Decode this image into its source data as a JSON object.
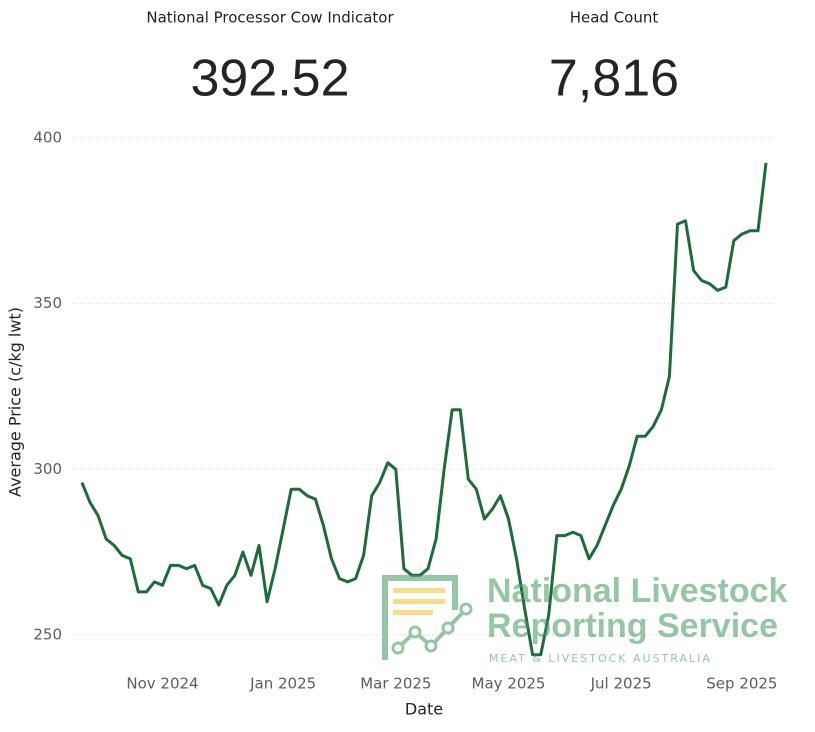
{
  "kpis": [
    {
      "label": "National Processor Cow Indicator",
      "value": "392.52"
    },
    {
      "label": "Head Count",
      "value": "7,816"
    }
  ],
  "logo": {
    "line1": "National Livestock",
    "line2": "Reporting Service",
    "tagline": "MEAT & LIVESTOCK AUSTRALIA"
  },
  "chart_data": {
    "type": "line",
    "y_label": "Average Price (c/kg lwt)",
    "x_label": "Date",
    "categories": [
      null,
      null,
      null,
      null,
      null,
      null,
      null,
      null,
      null,
      null,
      "Nov 2024",
      null,
      null,
      null,
      null,
      null,
      null,
      null,
      null,
      null,
      null,
      null,
      null,
      null,
      null,
      "Jan 2025",
      null,
      null,
      null,
      null,
      null,
      null,
      null,
      null,
      null,
      null,
      null,
      null,
      null,
      "Mar 2025",
      null,
      null,
      null,
      null,
      null,
      null,
      null,
      null,
      null,
      null,
      null,
      null,
      null,
      "May 2025",
      null,
      null,
      null,
      null,
      null,
      null,
      null,
      null,
      null,
      null,
      null,
      null,
      null,
      "Jul 2025",
      null,
      null,
      null,
      null,
      null,
      null,
      null,
      null,
      null,
      null,
      null,
      null,
      null,
      null,
      "Sep 2025",
      null,
      null,
      null
    ],
    "values": [
      296,
      290,
      286,
      279,
      277,
      274,
      273,
      263,
      263,
      266,
      265,
      271,
      271,
      270,
      271,
      265,
      264,
      259,
      265,
      268,
      275,
      268,
      277,
      260,
      270,
      282,
      294,
      294,
      292,
      291,
      283,
      273,
      267,
      266,
      267,
      274,
      292,
      296,
      302,
      300,
      270,
      268,
      268,
      270,
      279,
      300,
      318,
      318,
      297,
      294,
      285,
      288,
      292,
      285,
      273,
      258,
      244,
      244,
      256,
      280,
      280,
      281,
      280,
      273,
      277,
      283,
      289,
      294,
      301,
      310,
      310,
      313,
      318,
      328,
      374,
      375,
      360,
      357,
      356,
      354,
      355,
      369,
      371,
      372,
      372,
      392.52
    ],
    "color": "#1e6b3c",
    "ylim": [
      240,
      400
    ],
    "yticks": [
      250,
      300,
      350,
      400
    ],
    "grid": true
  }
}
